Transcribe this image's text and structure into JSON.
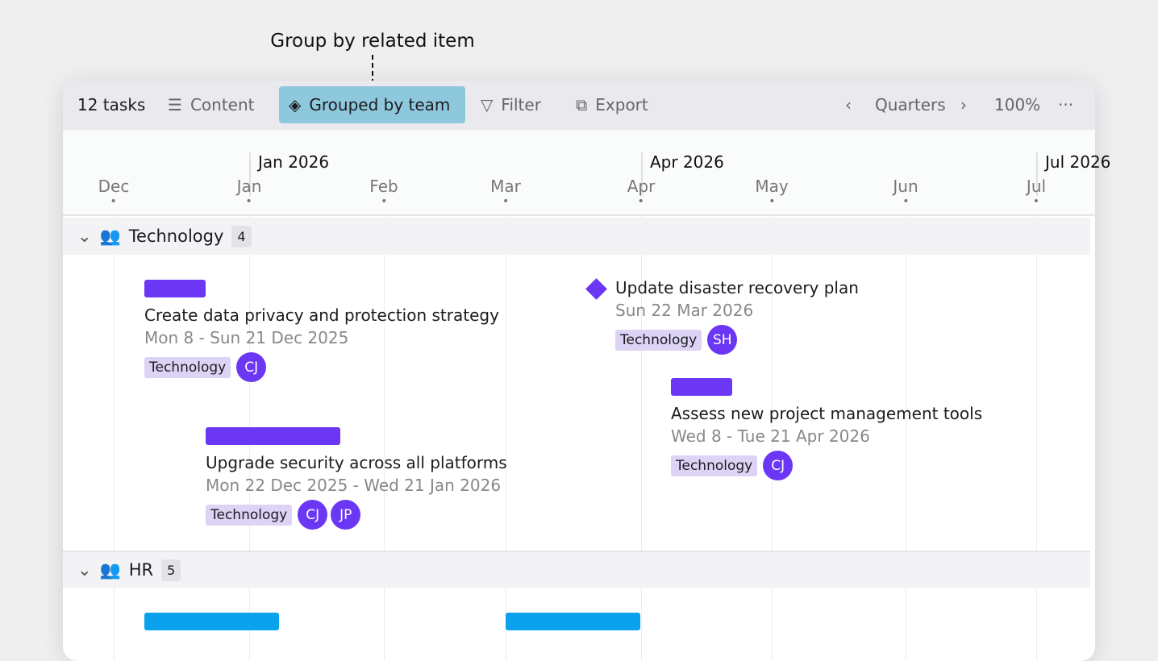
{
  "annotation": "Group by related item",
  "toolbar": {
    "count": "12 tasks",
    "content": "Content",
    "grouped": "Grouped by team",
    "filter": "Filter",
    "export": "Export",
    "scale": "Quarters",
    "zoom": "100%",
    "more": "···"
  },
  "timeline": {
    "quarters": [
      "Jan 2026",
      "Apr 2026",
      "Jul 2026"
    ],
    "months": [
      "Dec",
      "Jan",
      "Feb",
      "Mar",
      "Apr",
      "May",
      "Jun",
      "Jul"
    ]
  },
  "colors": {
    "technology": "#6b37f5",
    "hr": "#0aa2ec",
    "grouped_bg": "#8ec8dc"
  },
  "groups": [
    {
      "name": "Technology",
      "count": "4",
      "tasks": [
        {
          "title": "Create data privacy and protection strategy",
          "dates": "Mon 8 - Sun 21 Dec 2025",
          "tag": "Technology",
          "assignees": [
            "CJ"
          ]
        },
        {
          "title": "Upgrade security across all platforms",
          "dates": "Mon 22 Dec 2025 - Wed 21 Jan 2026",
          "tag": "Technology",
          "assignees": [
            "CJ",
            "JP"
          ]
        },
        {
          "title": "Update disaster recovery plan",
          "dates": "Sun 22 Mar 2026",
          "tag": "Technology",
          "assignees": [
            "SH"
          ],
          "milestone": true
        },
        {
          "title": "Assess new project management tools",
          "dates": "Wed 8 - Tue 21 Apr 2026",
          "tag": "Technology",
          "assignees": [
            "CJ"
          ]
        }
      ]
    },
    {
      "name": "HR",
      "count": "5"
    }
  ]
}
